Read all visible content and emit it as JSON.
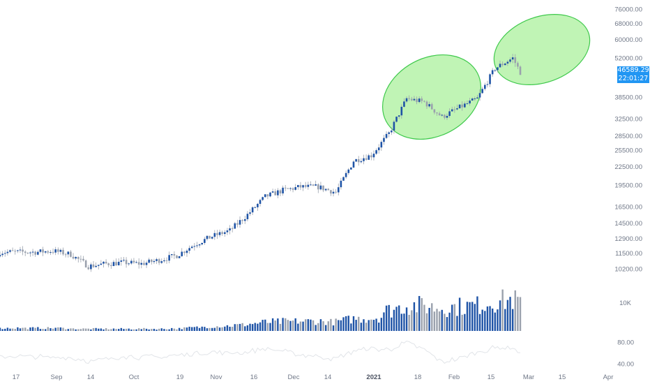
{
  "colors": {
    "up": "#1e53a6",
    "down": "#9aa1ad",
    "wick": "#9aa1ad",
    "highlight_fill": "#b5f2a8",
    "highlight_stroke": "#3fc94c",
    "price_badge": "#2196f3",
    "oscillator_line": "#e1e4e8",
    "axis_text": "#6f7787"
  },
  "price_badge": {
    "price": "46589.29",
    "countdown": "22:01:27"
  },
  "chart_data": [
    {
      "type": "candlestick",
      "y_scale": "log",
      "ylim": [
        9400,
        78000
      ],
      "y_ticks": [
        "76000.00",
        "68000.00",
        "60000.00",
        "52000.00",
        "46589.29",
        "38500.00",
        "32500.00",
        "28500.00",
        "25500.00",
        "22500.00",
        "19500.00",
        "16500.00",
        "14500.00",
        "12900.00",
        "11500.00",
        "10200.00"
      ],
      "x_ticks": [
        "17",
        "Sep",
        "14",
        "Oct",
        "19",
        "Nov",
        "16",
        "Dec",
        "14",
        "2021",
        "18",
        "Feb",
        "15",
        "Mar",
        "15",
        "Apr"
      ],
      "x_tick_bold": [
        "2021"
      ],
      "series": [
        {
          "date": "2020-08-17",
          "close": 11600
        },
        {
          "date": "2020-08-24",
          "close": 11700
        },
        {
          "date": "2020-08-31",
          "close": 11400
        },
        {
          "date": "2020-09-07",
          "close": 10400
        },
        {
          "date": "2020-09-14",
          "close": 10600
        },
        {
          "date": "2020-09-21",
          "close": 10700
        },
        {
          "date": "2020-09-28",
          "close": 10600
        },
        {
          "date": "2020-10-05",
          "close": 10900
        },
        {
          "date": "2020-10-12",
          "close": 11300
        },
        {
          "date": "2020-10-19",
          "close": 12300
        },
        {
          "date": "2020-10-26",
          "close": 13100
        },
        {
          "date": "2020-11-02",
          "close": 13700
        },
        {
          "date": "2020-11-09",
          "close": 15500
        },
        {
          "date": "2020-11-16",
          "close": 17800
        },
        {
          "date": "2020-11-23",
          "close": 18700
        },
        {
          "date": "2020-11-30",
          "close": 19200
        },
        {
          "date": "2020-12-07",
          "close": 19200
        },
        {
          "date": "2020-12-14",
          "close": 18400
        },
        {
          "date": "2020-12-21",
          "close": 23500
        },
        {
          "date": "2020-12-28",
          "close": 24500
        },
        {
          "date": "2021-01-04",
          "close": 29000
        },
        {
          "date": "2021-01-11",
          "close": 38000
        },
        {
          "date": "2021-01-18",
          "close": 37000
        },
        {
          "date": "2021-01-25",
          "close": 33000
        },
        {
          "date": "2021-02-01",
          "close": 35500
        },
        {
          "date": "2021-02-08",
          "close": 38000
        },
        {
          "date": "2021-02-15",
          "close": 48000
        },
        {
          "date": "2021-02-22",
          "close": 52000
        },
        {
          "date": "2021-02-25",
          "close": 46589.29
        }
      ]
    },
    {
      "type": "bar",
      "name": "Volume",
      "y_ticks": [
        "10K"
      ]
    },
    {
      "type": "line",
      "name": "Oscillator",
      "ylim": [
        35,
        95
      ],
      "y_ticks": [
        "80.00",
        "40.00"
      ]
    }
  ],
  "annotations": [
    {
      "type": "ellipse",
      "around": "2021-01-05 to 2021-02-10"
    },
    {
      "type": "ellipse",
      "around": "2021-02-14 to 2021-02-26"
    }
  ]
}
